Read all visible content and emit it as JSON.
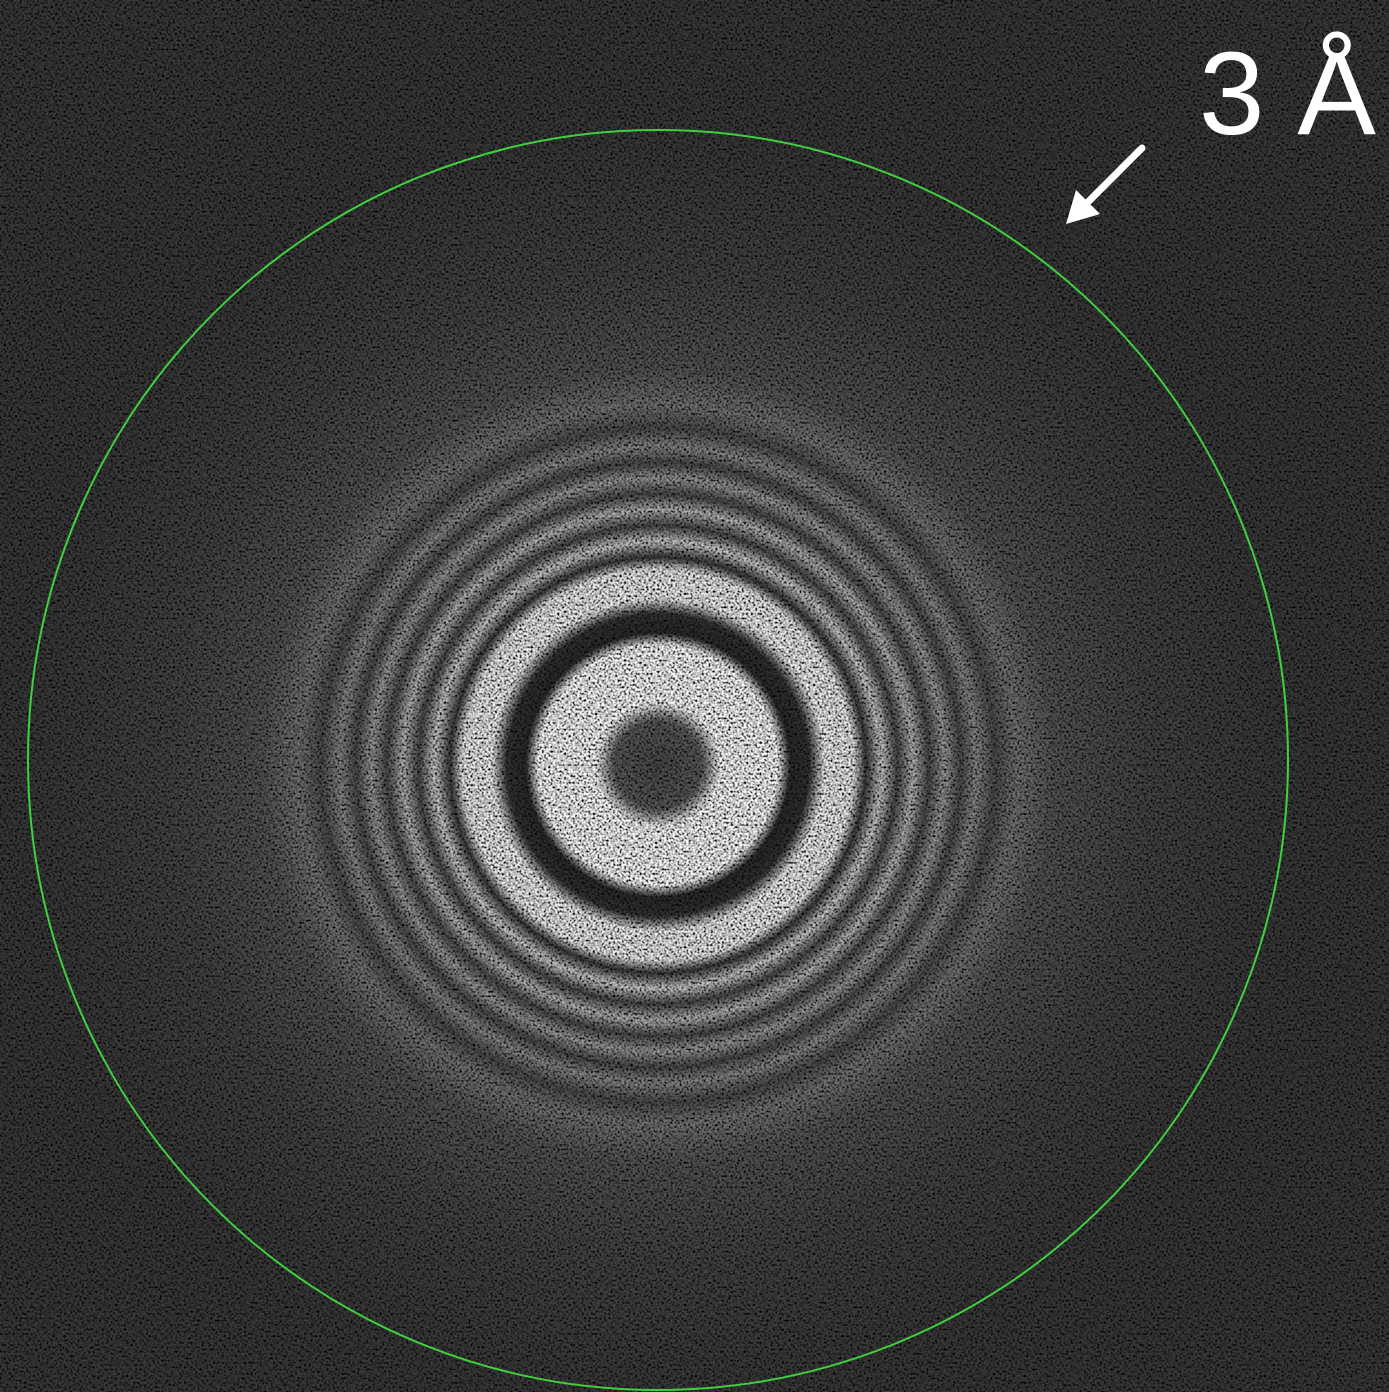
{
  "annotation": {
    "label": "3 Å"
  }
}
